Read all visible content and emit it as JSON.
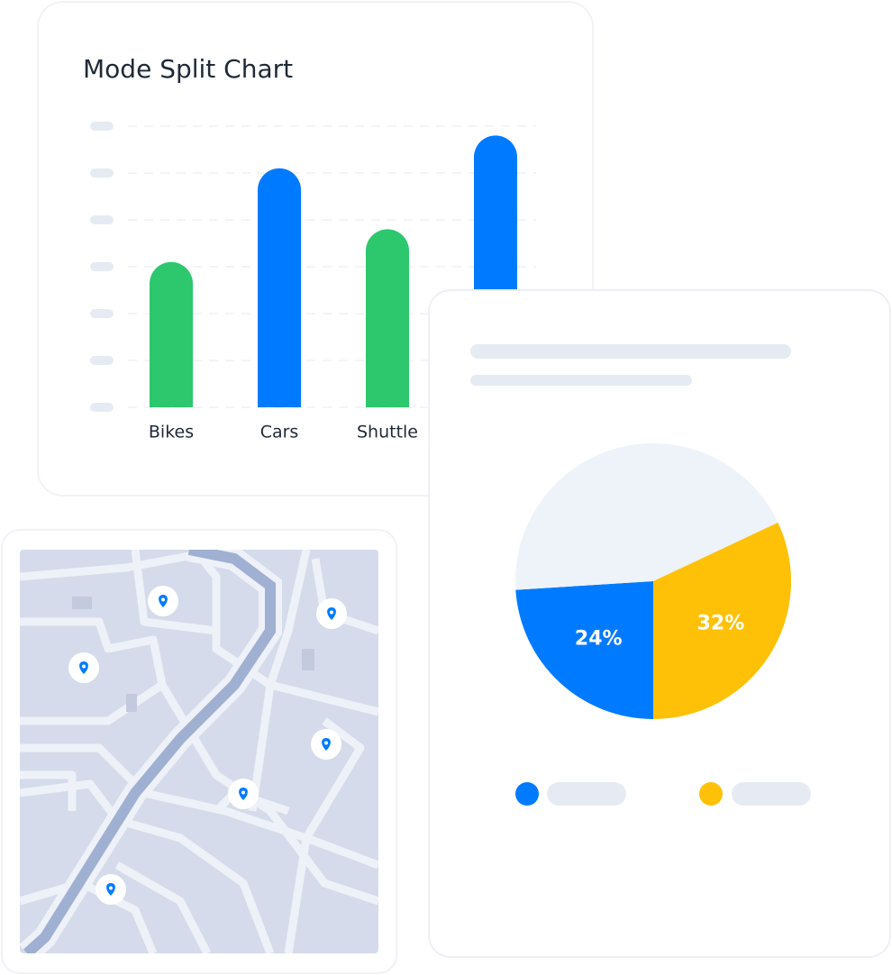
{
  "chart_data": [
    {
      "type": "bar",
      "title": "Mode Split Chart",
      "categories": [
        "Bikes",
        "Cars",
        "Shuttle",
        null
      ],
      "values": [
        3.1,
        5.1,
        3.8,
        5.8
      ],
      "colors": [
        "#2dc76d",
        "#007bff",
        "#2dc76d",
        "#007bff"
      ],
      "ylim": [
        0,
        6
      ],
      "yticks": [
        0,
        1,
        2,
        3,
        4,
        5,
        6
      ],
      "grid": true
    },
    {
      "type": "pie",
      "values": [
        24,
        44,
        32
      ],
      "value_labels": [
        "24%",
        null,
        "32%"
      ],
      "colors": [
        "#007bff",
        "#eef3f9",
        "#ffc107"
      ]
    }
  ]
}
